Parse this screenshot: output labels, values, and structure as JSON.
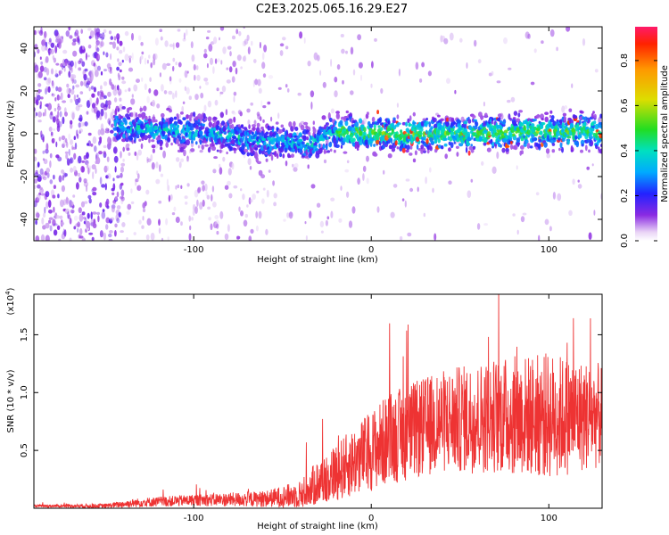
{
  "title": "C2E3.2025.065.16.29.E27",
  "chart_data": [
    {
      "type": "heatmap",
      "xlabel": "Height of straight line (km)",
      "ylabel": "Frequency (Hz)",
      "xlim": [
        -190,
        130
      ],
      "ylim": [
        -50,
        50
      ],
      "xticks": [
        -100,
        0,
        100
      ],
      "yticks": [
        -40,
        -20,
        0,
        20,
        40
      ],
      "colorbar": {
        "label": "Normalized spectral amplitude",
        "range": [
          0.0,
          0.95
        ],
        "ticks": [
          0.0,
          0.2,
          0.4,
          0.6,
          0.8
        ],
        "colormap": "rainbow-white-to-red"
      },
      "band_center_hz": [
        {
          "x": -140,
          "y": 3
        },
        {
          "x": -100,
          "y": 1
        },
        {
          "x": -60,
          "y": -3
        },
        {
          "x": -35,
          "y": -5
        },
        {
          "x": -20,
          "y": 1
        },
        {
          "x": 0,
          "y": 0
        },
        {
          "x": 50,
          "y": 0
        },
        {
          "x": 100,
          "y": 1
        },
        {
          "x": 130,
          "y": 1
        }
      ],
      "grid": false
    },
    {
      "type": "line",
      "xlabel": "Height of straight line (km)",
      "ylabel": "SNR (10 * v/v)",
      "y_multiplier_label": "(x10",
      "y_multiplier_exp": "4",
      "y_multiplier_close": ")",
      "xlim": [
        -190,
        130
      ],
      "ylim": [
        0,
        1.85
      ],
      "xticks": [
        -100,
        0,
        100
      ],
      "yticks": [
        0.5,
        1.0,
        1.5
      ],
      "ytick_labels": [
        "0.5",
        "1.0",
        "1.5"
      ],
      "series": [
        {
          "color": "#ee3333",
          "envelope": [
            {
              "x": -190,
              "mean": 0.02,
              "amp": 0.01
            },
            {
              "x": -150,
              "mean": 0.02,
              "amp": 0.02
            },
            {
              "x": -130,
              "mean": 0.05,
              "amp": 0.04
            },
            {
              "x": -100,
              "mean": 0.07,
              "amp": 0.05
            },
            {
              "x": -60,
              "mean": 0.08,
              "amp": 0.07
            },
            {
              "x": -40,
              "mean": 0.12,
              "amp": 0.12
            },
            {
              "x": -30,
              "mean": 0.22,
              "amp": 0.2
            },
            {
              "x": -10,
              "mean": 0.4,
              "amp": 0.3
            },
            {
              "x": 10,
              "mean": 0.6,
              "amp": 0.4
            },
            {
              "x": 40,
              "mean": 0.75,
              "amp": 0.45
            },
            {
              "x": 70,
              "mean": 0.8,
              "amp": 0.5
            },
            {
              "x": 100,
              "mean": 0.8,
              "amp": 0.55
            },
            {
              "x": 130,
              "mean": 0.8,
              "amp": 0.45
            }
          ]
        }
      ],
      "grid": false
    }
  ]
}
